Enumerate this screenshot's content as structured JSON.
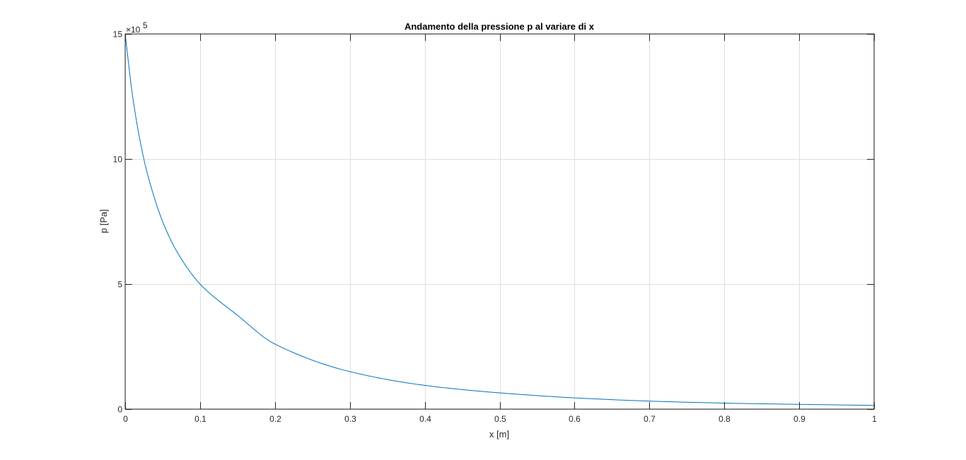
{
  "chart_data": {
    "type": "line",
    "title": "Andamento della pressione p al variare di x",
    "xlabel": "x [m]",
    "ylabel": "p [Pa]",
    "y_exponent_label": "×10",
    "y_exponent_power": "5",
    "y_scale_factor": 100000,
    "xlim": [
      0,
      1
    ],
    "ylim": [
      0,
      1500000
    ],
    "x_ticks": [
      0,
      0.1,
      0.2,
      0.3,
      0.4,
      0.5,
      0.6,
      0.7,
      0.8,
      0.9,
      1
    ],
    "x_tick_labels": [
      "0",
      "0.1",
      "0.2",
      "0.3",
      "0.4",
      "0.5",
      "0.6",
      "0.7",
      "0.8",
      "0.9",
      "1"
    ],
    "y_ticks": [
      0,
      500000,
      1000000,
      1500000
    ],
    "y_tick_labels": [
      "0",
      "5",
      "10",
      "15"
    ],
    "grid": true,
    "series": [
      {
        "color": "#0072bd",
        "x": [
          0,
          0.01,
          0.02,
          0.03,
          0.05,
          0.07,
          0.1,
          0.15,
          0.2,
          0.3,
          0.4,
          0.5,
          0.6,
          0.7,
          0.8,
          0.9,
          1.0
        ],
        "y": [
          1500000,
          1250000,
          1071400,
          937500,
          750000,
          625000,
          500000,
          375000,
          260000,
          150000,
          95000,
          65000,
          45000,
          32000,
          24000,
          19000,
          15000
        ]
      }
    ]
  }
}
